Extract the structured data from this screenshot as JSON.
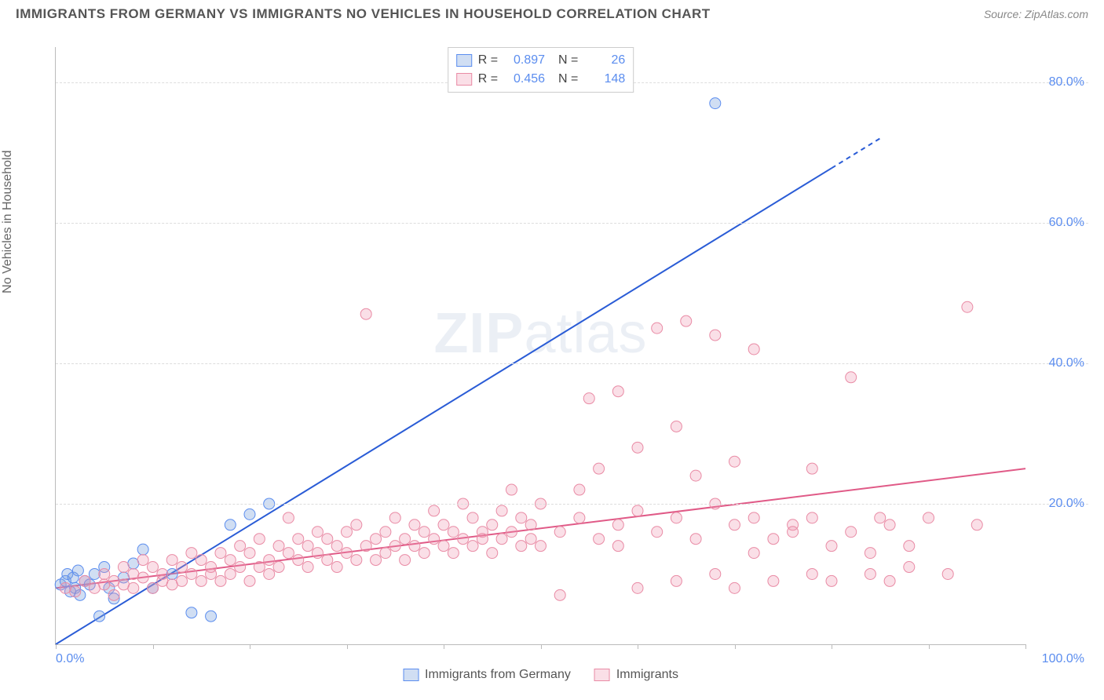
{
  "header": {
    "title": "IMMIGRANTS FROM GERMANY VS IMMIGRANTS NO VEHICLES IN HOUSEHOLD CORRELATION CHART",
    "source_prefix": "Source: ",
    "source": "ZipAtlas.com"
  },
  "chart": {
    "type": "scatter",
    "y_axis_label": "No Vehicles in Household",
    "watermark": "ZIPatlas",
    "xlim": [
      0,
      100
    ],
    "ylim": [
      0,
      85
    ],
    "x_ticks": [
      0,
      10,
      20,
      30,
      40,
      50,
      60,
      70,
      80,
      90,
      100
    ],
    "x_tick_labels": {
      "0": "0.0%",
      "100": "100.0%"
    },
    "y_ticks": [
      20,
      40,
      60,
      80
    ],
    "y_tick_labels": [
      "20.0%",
      "40.0%",
      "60.0%",
      "80.0%"
    ],
    "grid_color": "#dddddd",
    "background_color": "#ffffff",
    "axis_color": "#bbbbbb",
    "tick_label_color": "#5b8def",
    "series": [
      {
        "name": "Immigrants from Germany",
        "legend_label": "Immigrants from Germany",
        "marker_fill": "rgba(120,160,220,0.35)",
        "marker_stroke": "#5b8def",
        "marker_radius": 7,
        "line_color": "#2a5cd6",
        "line_width": 2,
        "R": "0.897",
        "N": "26",
        "trend": {
          "x1": 0,
          "y1": 0,
          "x2": 85,
          "y2": 72,
          "dash_after_x": 80
        },
        "points": [
          [
            0.5,
            8.5
          ],
          [
            1.0,
            9.0
          ],
          [
            1.2,
            10.0
          ],
          [
            1.5,
            7.5
          ],
          [
            1.8,
            9.5
          ],
          [
            2.0,
            8.0
          ],
          [
            2.3,
            10.5
          ],
          [
            2.5,
            7.0
          ],
          [
            3.0,
            9.0
          ],
          [
            3.5,
            8.5
          ],
          [
            4.0,
            10.0
          ],
          [
            4.5,
            4.0
          ],
          [
            5.0,
            11.0
          ],
          [
            5.5,
            8.0
          ],
          [
            6.0,
            6.5
          ],
          [
            7.0,
            9.5
          ],
          [
            8.0,
            11.5
          ],
          [
            9.0,
            13.5
          ],
          [
            10.0,
            8.0
          ],
          [
            12.0,
            10.0
          ],
          [
            14.0,
            4.5
          ],
          [
            16.0,
            4.0
          ],
          [
            18.0,
            17.0
          ],
          [
            20.0,
            18.5
          ],
          [
            22.0,
            20.0
          ],
          [
            68.0,
            77.0
          ]
        ]
      },
      {
        "name": "Immigrants",
        "legend_label": "Immigrants",
        "marker_fill": "rgba(240,150,175,0.30)",
        "marker_stroke": "#e98ba5",
        "marker_radius": 7,
        "line_color": "#e05a87",
        "line_width": 2,
        "R": "0.456",
        "N": "148",
        "trend": {
          "x1": 0,
          "y1": 8,
          "x2": 100,
          "y2": 25,
          "dash_after_x": 999
        },
        "points": [
          [
            1,
            8
          ],
          [
            2,
            7.5
          ],
          [
            3,
            9
          ],
          [
            4,
            8
          ],
          [
            5,
            8.5
          ],
          [
            5,
            10
          ],
          [
            6,
            7
          ],
          [
            6,
            9
          ],
          [
            7,
            8.5
          ],
          [
            7,
            11
          ],
          [
            8,
            8
          ],
          [
            8,
            10
          ],
          [
            9,
            9.5
          ],
          [
            9,
            12
          ],
          [
            10,
            8
          ],
          [
            10,
            11
          ],
          [
            11,
            9
          ],
          [
            11,
            10
          ],
          [
            12,
            12
          ],
          [
            12,
            8.5
          ],
          [
            13,
            9
          ],
          [
            13,
            11
          ],
          [
            14,
            10
          ],
          [
            14,
            13
          ],
          [
            15,
            9
          ],
          [
            15,
            12
          ],
          [
            16,
            11
          ],
          [
            16,
            10
          ],
          [
            17,
            13
          ],
          [
            17,
            9
          ],
          [
            18,
            12
          ],
          [
            18,
            10
          ],
          [
            19,
            11
          ],
          [
            19,
            14
          ],
          [
            20,
            9
          ],
          [
            20,
            13
          ],
          [
            21,
            11
          ],
          [
            21,
            15
          ],
          [
            22,
            12
          ],
          [
            22,
            10
          ],
          [
            23,
            14
          ],
          [
            23,
            11
          ],
          [
            24,
            13
          ],
          [
            24,
            18
          ],
          [
            25,
            12
          ],
          [
            25,
            15
          ],
          [
            26,
            11
          ],
          [
            26,
            14
          ],
          [
            27,
            13
          ],
          [
            27,
            16
          ],
          [
            28,
            12
          ],
          [
            28,
            15
          ],
          [
            29,
            14
          ],
          [
            29,
            11
          ],
          [
            30,
            16
          ],
          [
            30,
            13
          ],
          [
            31,
            12
          ],
          [
            31,
            17
          ],
          [
            32,
            14
          ],
          [
            32,
            47
          ],
          [
            33,
            15
          ],
          [
            33,
            12
          ],
          [
            34,
            16
          ],
          [
            34,
            13
          ],
          [
            35,
            14
          ],
          [
            35,
            18
          ],
          [
            36,
            15
          ],
          [
            36,
            12
          ],
          [
            37,
            17
          ],
          [
            37,
            14
          ],
          [
            38,
            13
          ],
          [
            38,
            16
          ],
          [
            39,
            15
          ],
          [
            39,
            19
          ],
          [
            40,
            14
          ],
          [
            40,
            17
          ],
          [
            41,
            16
          ],
          [
            41,
            13
          ],
          [
            42,
            15
          ],
          [
            42,
            20
          ],
          [
            43,
            14
          ],
          [
            43,
            18
          ],
          [
            44,
            16
          ],
          [
            44,
            15
          ],
          [
            45,
            17
          ],
          [
            45,
            13
          ],
          [
            46,
            19
          ],
          [
            46,
            15
          ],
          [
            47,
            16
          ],
          [
            47,
            22
          ],
          [
            48,
            14
          ],
          [
            48,
            18
          ],
          [
            49,
            17
          ],
          [
            49,
            15
          ],
          [
            50,
            20
          ],
          [
            50,
            14
          ],
          [
            52,
            16
          ],
          [
            52,
            7
          ],
          [
            54,
            18
          ],
          [
            54,
            22
          ],
          [
            55,
            35
          ],
          [
            56,
            15
          ],
          [
            56,
            25
          ],
          [
            58,
            17
          ],
          [
            58,
            14
          ],
          [
            58,
            36
          ],
          [
            60,
            19
          ],
          [
            60,
            8
          ],
          [
            60,
            28
          ],
          [
            62,
            16
          ],
          [
            62,
            45
          ],
          [
            64,
            18
          ],
          [
            64,
            9
          ],
          [
            64,
            31
          ],
          [
            65,
            46
          ],
          [
            66,
            15
          ],
          [
            66,
            24
          ],
          [
            68,
            10
          ],
          [
            68,
            44
          ],
          [
            68,
            20
          ],
          [
            70,
            17
          ],
          [
            70,
            8
          ],
          [
            70,
            26
          ],
          [
            72,
            13
          ],
          [
            72,
            42
          ],
          [
            72,
            18
          ],
          [
            74,
            9
          ],
          [
            74,
            15
          ],
          [
            76,
            17
          ],
          [
            76,
            16
          ],
          [
            78,
            10
          ],
          [
            78,
            18
          ],
          [
            78,
            25
          ],
          [
            80,
            14
          ],
          [
            80,
            9
          ],
          [
            82,
            38
          ],
          [
            82,
            16
          ],
          [
            84,
            10
          ],
          [
            84,
            13
          ],
          [
            85,
            18
          ],
          [
            86,
            9
          ],
          [
            86,
            17
          ],
          [
            88,
            14
          ],
          [
            88,
            11
          ],
          [
            90,
            18
          ],
          [
            92,
            10
          ],
          [
            94,
            48
          ],
          [
            95,
            17
          ]
        ]
      }
    ],
    "bottom_legend": [
      {
        "swatch_fill": "rgba(120,160,220,0.35)",
        "swatch_stroke": "#5b8def",
        "label": "Immigrants from Germany"
      },
      {
        "swatch_fill": "rgba(240,150,175,0.30)",
        "swatch_stroke": "#e98ba5",
        "label": "Immigrants"
      }
    ]
  }
}
